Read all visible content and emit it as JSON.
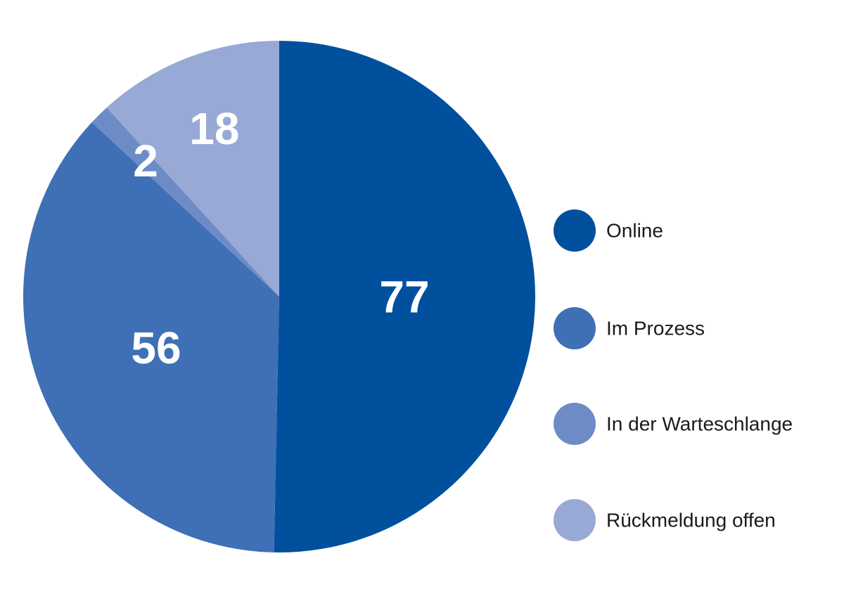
{
  "chart_data": {
    "type": "pie",
    "categories": [
      "Online",
      "Im Prozess",
      "In der Warteschlange",
      "Rückmeldung offen"
    ],
    "values": [
      77,
      56,
      2,
      18
    ],
    "colors": [
      "#00509e",
      "#3f6fb5",
      "#6d8cc6",
      "#98a9d6"
    ],
    "start_angle": 0,
    "direction": "clockwise",
    "legend": "right"
  }
}
